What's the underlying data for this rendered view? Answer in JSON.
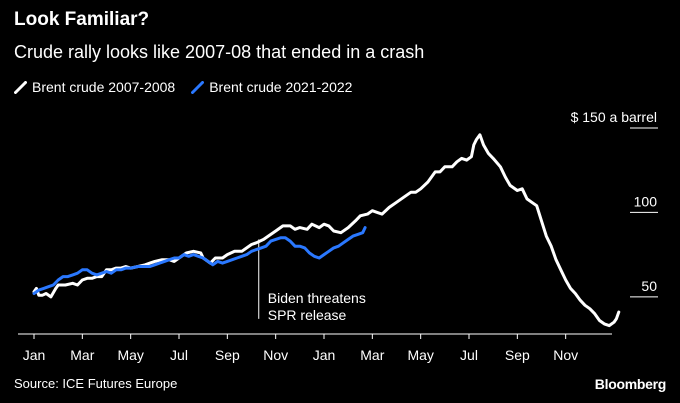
{
  "header": {
    "title": "Look Familiar?",
    "subtitle": "Crude rally looks like 2007-08 that ended in a crash"
  },
  "footer": {
    "source": "Source: ICE Futures Europe",
    "brand": "Bloomberg"
  },
  "chart_data": {
    "type": "line",
    "title": "Look Familiar?",
    "subtitle": "Crude rally looks like 2007-08 that ended in a crash",
    "ylabel_unit": "$150 a barrel",
    "ylim": [
      28,
      150
    ],
    "ylim_note": "axis ranges are approximate",
    "y_ticks": [
      {
        "value": 150,
        "label": "$ 150  a barrel"
      },
      {
        "value": 100,
        "label": "100"
      },
      {
        "value": 50,
        "label": "50"
      }
    ],
    "x_ticks": [
      "Jan",
      "Mar",
      "May",
      "Jul",
      "Sep",
      "Nov",
      "Jan",
      "Mar",
      "May",
      "Jul",
      "Sep",
      "Nov"
    ],
    "x_unit": "month index from first Jan (0 = Jan, 23 = Dec of second year)",
    "xlim": [
      0,
      24
    ],
    "grid": false,
    "legend_position": "top-left",
    "series": [
      {
        "name": "Brent crude 2007-2008",
        "color": "#ffffff",
        "points": [
          [
            0.0,
            53
          ],
          [
            0.1,
            55
          ],
          [
            0.2,
            51
          ],
          [
            0.35,
            51
          ],
          [
            0.5,
            52
          ],
          [
            0.7,
            50
          ],
          [
            0.9,
            55
          ],
          [
            1.0,
            57
          ],
          [
            1.3,
            57
          ],
          [
            1.6,
            58
          ],
          [
            1.8,
            57
          ],
          [
            2.0,
            60
          ],
          [
            2.2,
            61
          ],
          [
            2.4,
            61
          ],
          [
            2.6,
            62
          ],
          [
            2.8,
            62
          ],
          [
            3.0,
            66
          ],
          [
            3.2,
            66
          ],
          [
            3.4,
            67
          ],
          [
            3.6,
            67
          ],
          [
            3.8,
            68
          ],
          [
            4.0,
            67
          ],
          [
            4.3,
            68
          ],
          [
            4.6,
            69
          ],
          [
            4.8,
            70
          ],
          [
            5.0,
            71
          ],
          [
            5.3,
            72
          ],
          [
            5.6,
            72
          ],
          [
            5.8,
            71
          ],
          [
            6.0,
            73
          ],
          [
            6.3,
            76
          ],
          [
            6.6,
            77
          ],
          [
            6.9,
            76
          ],
          [
            7.0,
            73
          ],
          [
            7.3,
            70
          ],
          [
            7.5,
            73
          ],
          [
            7.8,
            73
          ],
          [
            8.0,
            75
          ],
          [
            8.3,
            77
          ],
          [
            8.6,
            77
          ],
          [
            8.8,
            79
          ],
          [
            9.0,
            81
          ],
          [
            9.2,
            82
          ],
          [
            9.5,
            84
          ],
          [
            9.8,
            87
          ],
          [
            10.0,
            89
          ],
          [
            10.3,
            92
          ],
          [
            10.6,
            92
          ],
          [
            10.8,
            90
          ],
          [
            11.0,
            91
          ],
          [
            11.3,
            90
          ],
          [
            11.5,
            93
          ],
          [
            11.8,
            91
          ],
          [
            12.0,
            93
          ],
          [
            12.2,
            92
          ],
          [
            12.4,
            89
          ],
          [
            12.7,
            88
          ],
          [
            13.0,
            91
          ],
          [
            13.3,
            95
          ],
          [
            13.5,
            98
          ],
          [
            13.8,
            99
          ],
          [
            14.0,
            101
          ],
          [
            14.2,
            100
          ],
          [
            14.4,
            99
          ],
          [
            14.7,
            103
          ],
          [
            15.0,
            106
          ],
          [
            15.3,
            109
          ],
          [
            15.6,
            112
          ],
          [
            15.8,
            112
          ],
          [
            16.0,
            114
          ],
          [
            16.3,
            118
          ],
          [
            16.6,
            124
          ],
          [
            16.8,
            124
          ],
          [
            17.0,
            127
          ],
          [
            17.3,
            127
          ],
          [
            17.5,
            130
          ],
          [
            17.7,
            132
          ],
          [
            17.9,
            131
          ],
          [
            18.1,
            133
          ],
          [
            18.2,
            140
          ],
          [
            18.3,
            143
          ],
          [
            18.45,
            146
          ],
          [
            18.6,
            140
          ],
          [
            18.8,
            135
          ],
          [
            19.0,
            132
          ],
          [
            19.3,
            127
          ],
          [
            19.5,
            121
          ],
          [
            19.7,
            116
          ],
          [
            20.0,
            113
          ],
          [
            20.2,
            114
          ],
          [
            20.4,
            108
          ],
          [
            20.6,
            106
          ],
          [
            20.8,
            104
          ],
          [
            21.0,
            95
          ],
          [
            21.2,
            86
          ],
          [
            21.4,
            80
          ],
          [
            21.6,
            72
          ],
          [
            21.8,
            66
          ],
          [
            22.0,
            60
          ],
          [
            22.2,
            55
          ],
          [
            22.4,
            52
          ],
          [
            22.6,
            48
          ],
          [
            22.8,
            45
          ],
          [
            23.0,
            43
          ],
          [
            23.2,
            40
          ],
          [
            23.4,
            36
          ],
          [
            23.6,
            34
          ],
          [
            23.8,
            33
          ],
          [
            24.0,
            35
          ],
          [
            24.1,
            37
          ],
          [
            24.2,
            41
          ]
        ]
      },
      {
        "name": "Brent crude 2021-2022",
        "color": "#2a78ff",
        "points": [
          [
            0.0,
            52
          ],
          [
            0.2,
            54
          ],
          [
            0.4,
            55
          ],
          [
            0.6,
            56
          ],
          [
            0.8,
            57
          ],
          [
            1.0,
            60
          ],
          [
            1.2,
            62
          ],
          [
            1.4,
            62
          ],
          [
            1.6,
            63
          ],
          [
            1.8,
            64
          ],
          [
            2.0,
            66
          ],
          [
            2.2,
            66
          ],
          [
            2.4,
            64
          ],
          [
            2.6,
            63
          ],
          [
            2.8,
            64
          ],
          [
            3.0,
            65
          ],
          [
            3.2,
            64
          ],
          [
            3.4,
            66
          ],
          [
            3.6,
            66
          ],
          [
            3.8,
            67
          ],
          [
            4.0,
            67
          ],
          [
            4.3,
            68
          ],
          [
            4.6,
            68
          ],
          [
            4.8,
            68
          ],
          [
            5.0,
            69
          ],
          [
            5.2,
            70
          ],
          [
            5.4,
            71
          ],
          [
            5.6,
            72
          ],
          [
            5.8,
            73
          ],
          [
            6.0,
            73
          ],
          [
            6.2,
            75
          ],
          [
            6.4,
            74
          ],
          [
            6.6,
            75
          ],
          [
            6.8,
            74
          ],
          [
            7.0,
            73
          ],
          [
            7.2,
            71
          ],
          [
            7.4,
            69
          ],
          [
            7.6,
            71
          ],
          [
            7.8,
            70
          ],
          [
            8.0,
            71
          ],
          [
            8.2,
            72
          ],
          [
            8.4,
            73
          ],
          [
            8.6,
            74
          ],
          [
            8.8,
            75
          ],
          [
            9.0,
            77
          ],
          [
            9.2,
            78
          ],
          [
            9.4,
            79
          ],
          [
            9.6,
            80
          ],
          [
            9.8,
            83
          ],
          [
            10.0,
            84
          ],
          [
            10.2,
            85
          ],
          [
            10.4,
            85
          ],
          [
            10.6,
            83
          ],
          [
            10.8,
            80
          ],
          [
            11.0,
            80
          ],
          [
            11.2,
            79
          ],
          [
            11.4,
            76
          ],
          [
            11.6,
            74
          ],
          [
            11.8,
            73
          ],
          [
            12.0,
            75
          ],
          [
            12.2,
            77
          ],
          [
            12.4,
            79
          ],
          [
            12.6,
            80
          ],
          [
            12.8,
            82
          ],
          [
            13.0,
            84
          ],
          [
            13.2,
            86
          ],
          [
            13.4,
            87
          ],
          [
            13.6,
            88
          ],
          [
            13.7,
            91
          ]
        ]
      }
    ],
    "annotations": [
      {
        "text": "Biden threatens\nSPR release",
        "x": 9.3,
        "y_range": [
          50,
          84
        ]
      }
    ]
  }
}
